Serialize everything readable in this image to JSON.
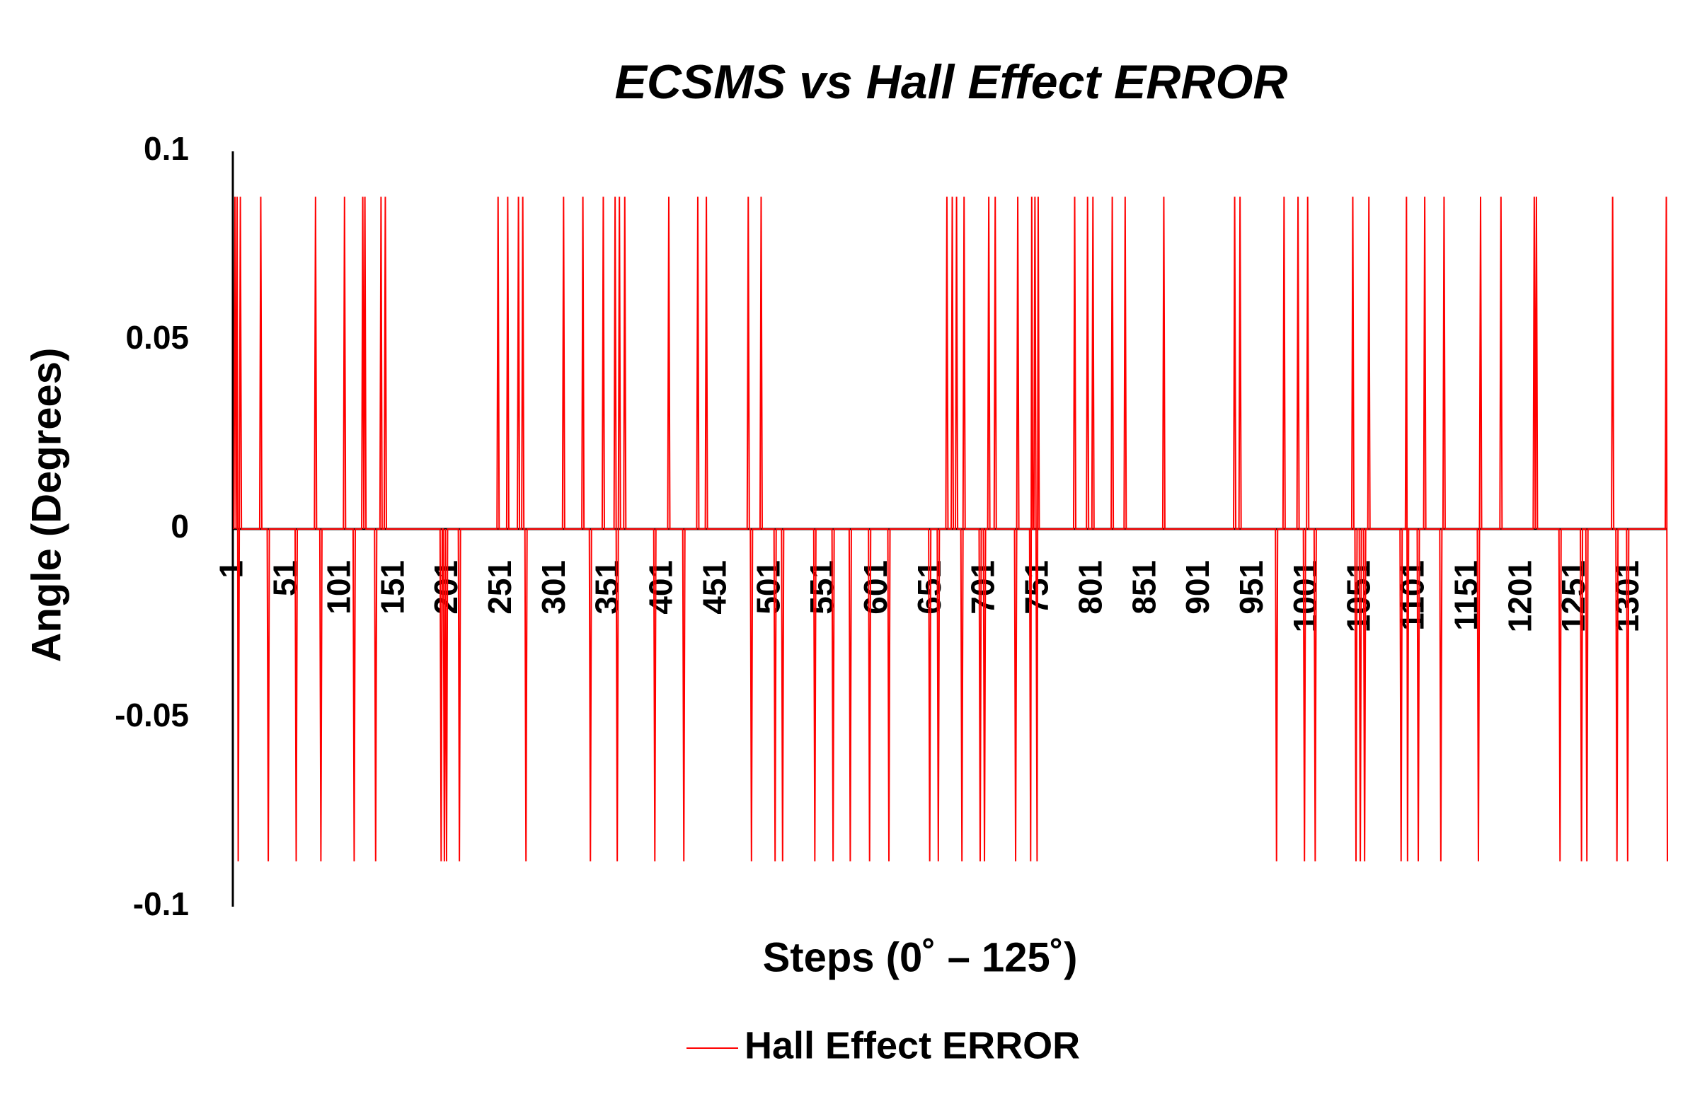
{
  "chart_data": {
    "type": "line",
    "title": "ECSMS vs Hall Effect ERROR",
    "x_label": "Steps (0˚ – 125˚)",
    "y_label": "Angle (Degrees)",
    "xlim": [
      0,
      1336
    ],
    "xticks": [
      1,
      51,
      101,
      151,
      201,
      251,
      301,
      351,
      401,
      451,
      501,
      551,
      601,
      651,
      701,
      751,
      801,
      851,
      901,
      951,
      1001,
      1051,
      1101,
      1151,
      1201,
      1251,
      1301
    ],
    "ylim": [
      -0.1,
      0.1
    ],
    "yticks": [
      {
        "value": -0.1,
        "label": "-0.1"
      },
      {
        "value": -0.05,
        "label": "-0.05"
      },
      0,
      {
        "value": 0.05,
        "label": "0.05"
      },
      {
        "value": 0.1,
        "label": "0.1"
      }
    ],
    "grid": false,
    "legend": "bottom",
    "series": [
      {
        "name": "Hall Effect ERROR",
        "color": "#ff0000",
        "x": [
          1,
          2,
          3,
          4,
          5,
          6,
          7,
          8,
          25,
          26,
          27,
          32,
          33,
          34,
          58,
          59,
          60,
          76,
          77,
          78,
          81,
          82,
          83,
          103,
          104,
          105,
          112,
          113,
          114,
          120,
          121,
          122,
          123,
          124,
          132,
          133,
          134,
          137,
          138,
          139,
          141,
          142,
          143,
          193,
          194,
          195,
          196,
          197,
          198,
          199,
          200,
          210,
          211,
          212,
          246,
          247,
          248,
          255,
          256,
          257,
          265,
          266,
          267,
          269,
          270,
          271,
          272,
          273,
          274,
          307,
          308,
          309,
          325,
          326,
          327,
          332,
          333,
          334,
          344,
          345,
          346,
          355,
          356,
          357,
          358,
          359,
          360,
          361,
          364,
          365,
          366,
          392,
          393,
          394,
          405,
          406,
          407,
          419,
          420,
          421,
          432,
          433,
          434,
          440,
          441,
          442,
          479,
          480,
          481,
          482,
          483,
          484,
          491,
          492,
          493,
          504,
          505,
          506,
          511,
          512,
          513,
          541,
          542,
          543,
          558,
          559,
          560,
          574,
          575,
          576,
          592,
          593,
          594,
          610,
          611,
          612,
          648,
          649,
          650,
          656,
          657,
          658,
          664,
          665,
          666,
          669,
          670,
          671,
          673,
          674,
          675,
          678,
          679,
          680,
          681,
          682,
          695,
          696,
          697,
          699,
          700,
          701,
          703,
          704,
          705,
          709,
          710,
          711,
          728,
          729,
          730,
          731,
          732,
          742,
          743,
          744,
          745,
          746,
          747,
          748,
          749,
          750,
          751,
          783,
          784,
          785,
          795,
          796,
          797,
          800,
          801,
          802,
          818,
          819,
          820,
          830,
          831,
          832,
          866,
          867,
          868,
          932,
          933,
          934,
          937,
          938,
          939,
          971,
          972,
          973,
          978,
          979,
          980,
          991,
          992,
          993,
          997,
          998,
          999,
          1000,
          1001,
          1002,
          1007,
          1008,
          1009,
          1042,
          1043,
          1044,
          1045,
          1046,
          1047,
          1049,
          1050,
          1051,
          1053,
          1054,
          1055,
          1057,
          1058,
          1059,
          1087,
          1088,
          1089,
          1092,
          1093,
          1094,
          1095,
          1103,
          1104,
          1105,
          1109,
          1110,
          1111,
          1124,
          1125,
          1126,
          1127,
          1128,
          1129,
          1159,
          1160,
          1161,
          1162,
          1163,
          1180,
          1181,
          1182,
          1211,
          1212,
          1213,
          1214,
          1215,
          1235,
          1236,
          1237,
          1255,
          1256,
          1257,
          1260,
          1261,
          1262,
          1284,
          1285,
          1286,
          1288,
          1289,
          1290,
          1298,
          1299,
          1300,
          1334,
          1335,
          1336
        ],
        "values": [
          0,
          0.088,
          0,
          0.088,
          -0.088,
          0,
          0.088,
          0,
          0,
          0.088,
          0,
          0,
          -0.088,
          0,
          0,
          -0.088,
          0,
          0,
          0.088,
          0,
          0,
          -0.088,
          0,
          0,
          0.088,
          0,
          0,
          -0.088,
          0,
          0,
          0.088,
          0,
          0.088,
          0,
          0,
          -0.088,
          0,
          0,
          0.088,
          0,
          0,
          0.088,
          0,
          0,
          -0.088,
          0,
          0,
          -0.088,
          0,
          -0.088,
          0,
          0,
          -0.088,
          0,
          0,
          0.088,
          0,
          0,
          0.088,
          0,
          0,
          0.088,
          0,
          0,
          0.088,
          0,
          0,
          -0.088,
          0,
          0,
          0.088,
          0,
          0,
          0.088,
          0,
          0,
          -0.088,
          0,
          0,
          0.088,
          0,
          0,
          0.088,
          0,
          -0.088,
          0,
          0.088,
          0,
          0,
          0.088,
          0,
          0,
          -0.088,
          0,
          0,
          0.088,
          0,
          0,
          -0.088,
          0,
          0,
          0.088,
          0,
          0,
          0.088,
          0,
          0,
          0.088,
          0,
          0,
          -0.088,
          0,
          0,
          0.088,
          0,
          0,
          -0.088,
          0,
          0,
          -0.088,
          0,
          0,
          -0.088,
          0,
          0,
          -0.088,
          0,
          0,
          -0.088,
          0,
          0,
          -0.088,
          0,
          0,
          -0.088,
          0,
          0,
          -0.088,
          0,
          0,
          -0.088,
          0,
          0,
          0.088,
          0,
          0,
          0.088,
          0,
          0,
          0.088,
          0,
          0,
          -0.088,
          0,
          0.088,
          0,
          0,
          -0.088,
          0,
          0,
          -0.088,
          0,
          0,
          0.088,
          0,
          0,
          0.088,
          0,
          0,
          -0.088,
          0,
          0.088,
          0,
          0,
          -0.088,
          0.088,
          0,
          0,
          0.088,
          0,
          -0.088,
          0.088,
          0,
          0,
          0.088,
          0,
          0,
          0.088,
          0,
          0,
          0.088,
          0,
          0,
          0.088,
          0,
          0,
          0.088,
          0,
          0,
          0.088,
          0,
          0,
          0.088,
          0,
          0,
          0.088,
          0,
          0,
          -0.088,
          0,
          0,
          0.088,
          0,
          0,
          0.088,
          0,
          0,
          -0.088,
          0,
          0,
          0.088,
          0,
          0,
          -0.088,
          0,
          0,
          0.088,
          0,
          0,
          -0.088,
          0,
          0,
          -0.088,
          0,
          0,
          -0.088,
          0,
          0,
          0.088,
          0,
          0,
          -0.088,
          0,
          0,
          0.088,
          -0.088,
          0,
          0,
          -0.088,
          0,
          0,
          0.088,
          0,
          0,
          -0.088,
          0,
          0,
          0.088,
          0,
          0,
          -0.088,
          0,
          0.088,
          0,
          0,
          0.088,
          0,
          0,
          0.088,
          0,
          0.088,
          0,
          0,
          -0.088,
          0,
          0,
          -0.088,
          0,
          0,
          -0.088,
          0,
          0,
          0.088,
          0,
          0,
          -0.088,
          0,
          0,
          -0.088,
          0,
          0,
          0.088,
          -0.088
        ]
      }
    ]
  }
}
